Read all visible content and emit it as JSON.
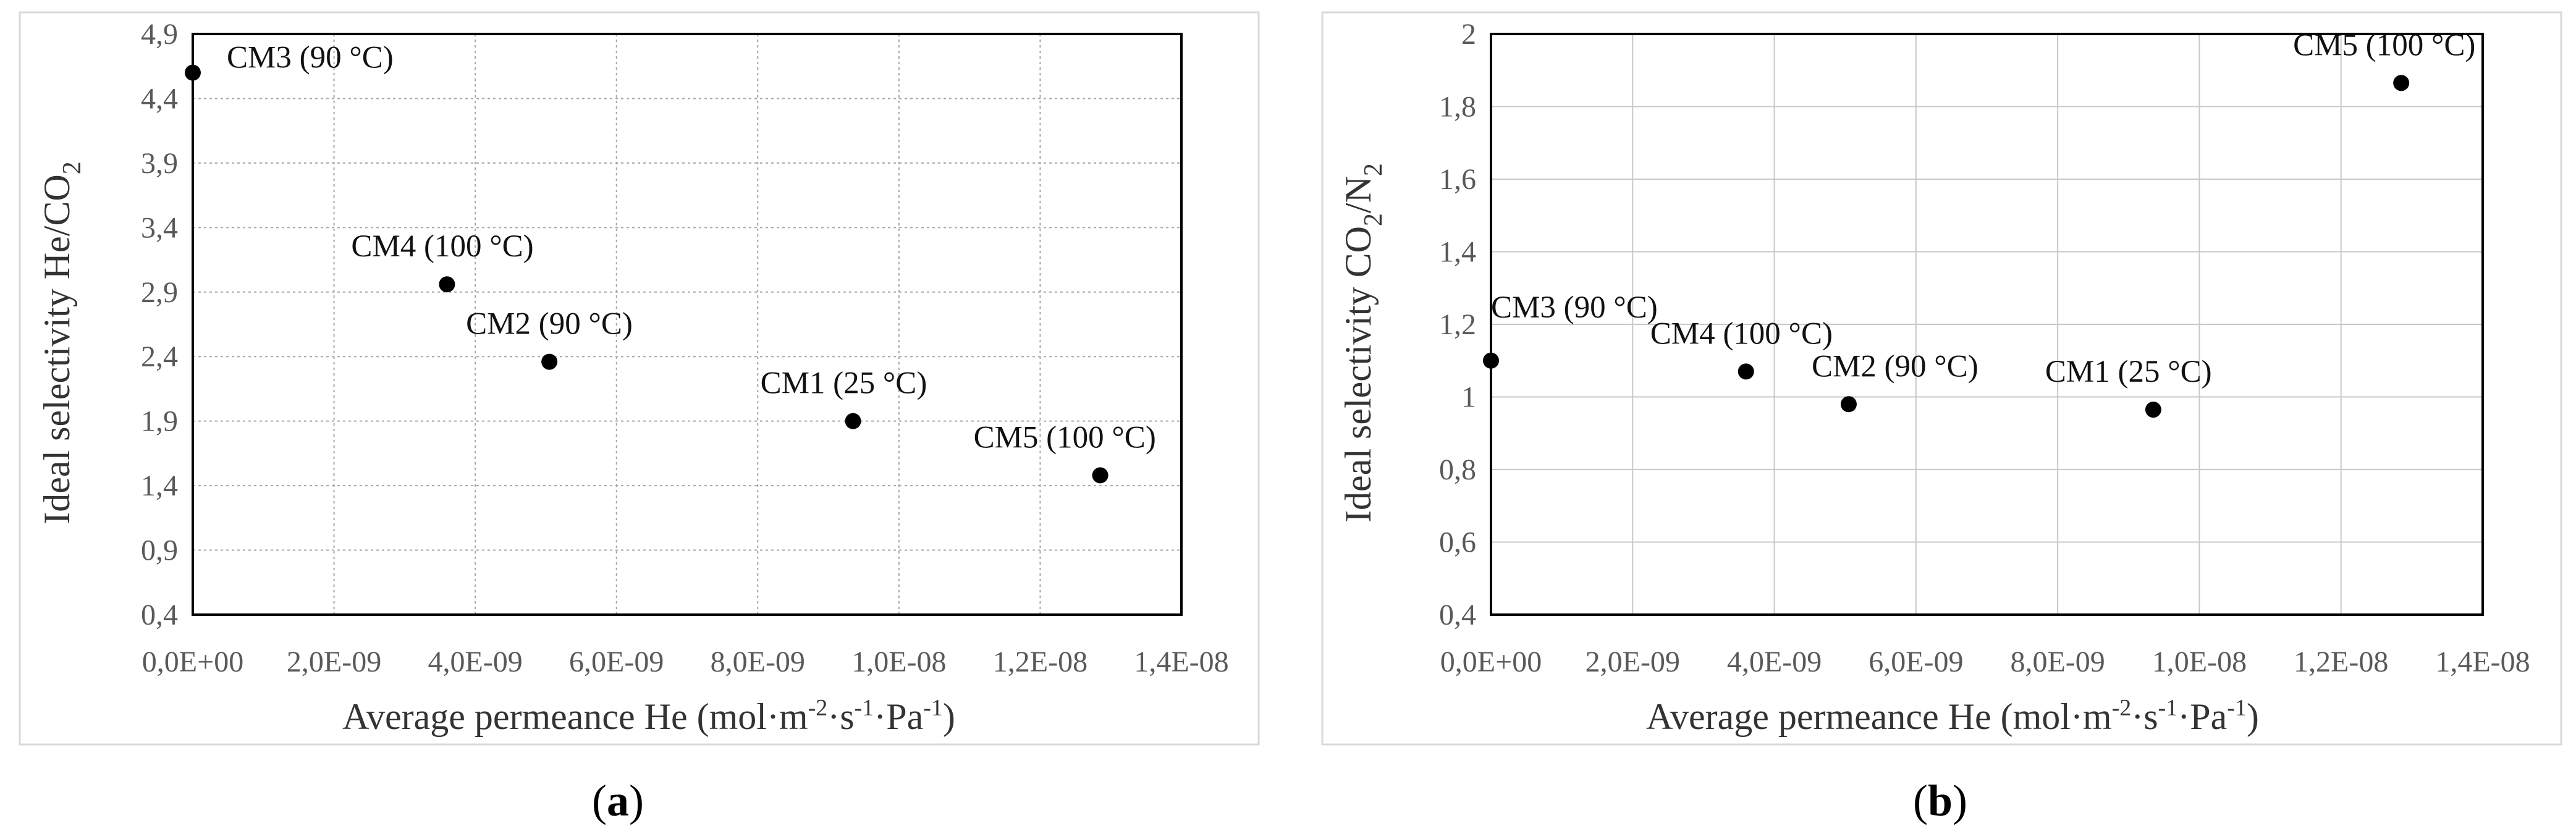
{
  "chart_data": [
    {
      "type": "scatter",
      "panel_label": {
        "open": "(",
        "letter": "a",
        "close": ")"
      },
      "xlabel": {
        "main": "Average permeance He (mol·m",
        "sup1": "-2",
        "mid1": "·s",
        "sup2": "-1",
        "mid2": "·Pa",
        "sup3": "-1",
        "end": ")"
      },
      "ylabel": {
        "main": "Ideal selectivity He/CO",
        "sub": "2"
      },
      "xlim": [
        0,
        1.4e-08
      ],
      "ylim": [
        0.4,
        4.9
      ],
      "x_ticks": [
        "0,0E+00",
        "2,0E-09",
        "4,0E-09",
        "6,0E-09",
        "8,0E-09",
        "1,0E-08",
        "1,2E-08",
        "1,4E-08"
      ],
      "y_ticks": [
        "0,4",
        "0,9",
        "1,4",
        "1,9",
        "2,4",
        "2,9",
        "3,4",
        "3,9",
        "4,4",
        "4,9"
      ],
      "grid": true,
      "points": [
        {
          "label": "CM3 (90 °C)",
          "x": 0.0,
          "y": 4.6
        },
        {
          "label": "CM4 (100 °C)",
          "x": 3.6e-09,
          "y": 2.96
        },
        {
          "label": "CM2 (90 °C)",
          "x": 5.05e-09,
          "y": 2.36
        },
        {
          "label": "CM1 (25 °C)",
          "x": 9.35e-09,
          "y": 1.9
        },
        {
          "label": "CM5 (100 °C)",
          "x": 1.285e-08,
          "y": 1.48
        }
      ]
    },
    {
      "type": "scatter",
      "panel_label": {
        "open": "(",
        "letter": "b",
        "close": ")"
      },
      "xlabel": {
        "main": "Average permeance He (mol·m",
        "sup1": "-2",
        "mid1": "·s",
        "sup2": "-1",
        "mid2": "·Pa",
        "sup3": "-1",
        "end": ")"
      },
      "ylabel": {
        "main": "Ideal selectivity CO",
        "sub": "2",
        "mid": "/N",
        "sub2": "2"
      },
      "xlim": [
        0,
        1.4e-08
      ],
      "ylim": [
        0.4,
        2.0
      ],
      "x_ticks": [
        "0,0E+00",
        "2,0E-09",
        "4,0E-09",
        "6,0E-09",
        "8,0E-09",
        "1,0E-08",
        "1,2E-08",
        "1,4E-08"
      ],
      "y_ticks": [
        "0,4",
        "0,6",
        "0,8",
        "1",
        "1,2",
        "1,4",
        "1,6",
        "1,8",
        "2"
      ],
      "grid": true,
      "points": [
        {
          "label": "CM3 (90 °C)",
          "x": 0.0,
          "y": 1.1
        },
        {
          "label": "CM4 (100 °C)",
          "x": 3.6e-09,
          "y": 1.07
        },
        {
          "label": "CM2 (90 °C)",
          "x": 5.05e-09,
          "y": 0.98
        },
        {
          "label": "CM1 (25 °C)",
          "x": 9.35e-09,
          "y": 0.965
        },
        {
          "label": "CM5 (100 °C)",
          "x": 1.285e-08,
          "y": 1.865
        }
      ]
    }
  ]
}
